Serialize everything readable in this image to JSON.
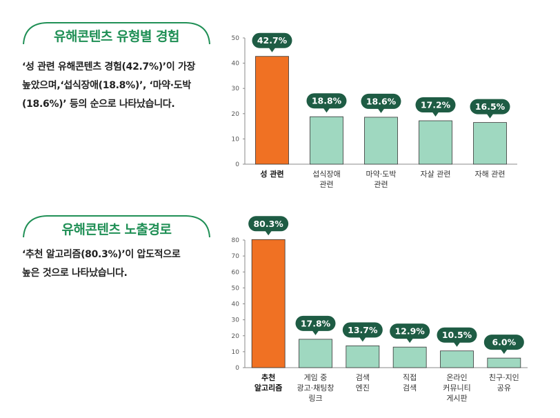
{
  "section1": {
    "title": "유해콘텐츠 유형별 경험",
    "description_lines": [
      "‘성 관련 유해콘텐츠 경험(42.7%)’이 가장",
      "높았으며,‘섭식장애(18.8%)’, ‘마약·도박",
      "(18.6%)’ 등의 순으로 나타났습니다."
    ]
  },
  "section2": {
    "title": "유해콘텐츠 노출경로",
    "description_lines": [
      "‘추천 알고리즘(80.3%)’이 압도적으로",
      "높은 것으로 나타났습니다."
    ]
  },
  "colors": {
    "accent_green": "#1f8f55",
    "pill_dark": "#1e5c44",
    "bar_highlight": "#f07123",
    "bar_normal": "#9fd8c0",
    "bar_stroke": "#333333"
  },
  "chart_data": [
    {
      "type": "bar",
      "title": "유해콘텐츠 유형별 경험",
      "categories": [
        [
          "성 관련"
        ],
        [
          "섭식장애",
          "관련"
        ],
        [
          "마약·도박",
          "관련"
        ],
        [
          "자살 관련"
        ],
        [
          "자해 관련"
        ]
      ],
      "values": [
        42.7,
        18.8,
        18.6,
        17.2,
        16.5
      ],
      "data_labels": [
        "42.7%",
        "18.8%",
        "18.6%",
        "17.2%",
        "16.5%"
      ],
      "highlight_index": 0,
      "yticks": [
        0,
        10,
        20,
        30,
        40,
        50
      ],
      "ylim": [
        0,
        50
      ],
      "xlabel": "",
      "ylabel": ""
    },
    {
      "type": "bar",
      "title": "유해콘텐츠 노출경로",
      "categories": [
        [
          "추천",
          "알고리즘"
        ],
        [
          "게임 중",
          "광고·채팅창",
          "링크"
        ],
        [
          "검색",
          "엔진"
        ],
        [
          "직접",
          "검색"
        ],
        [
          "온라인",
          "커뮤니티",
          "게시판"
        ],
        [
          "친구·지인",
          "공유"
        ]
      ],
      "values": [
        80.3,
        17.8,
        13.7,
        12.9,
        10.5,
        6.0
      ],
      "data_labels": [
        "80.3%",
        "17.8%",
        "13.7%",
        "12.9%",
        "10.5%",
        "6.0%"
      ],
      "highlight_index": 0,
      "yticks": [
        0,
        10,
        20,
        30,
        40,
        50,
        60,
        70,
        80
      ],
      "ylim": [
        0,
        80
      ],
      "xlabel": "",
      "ylabel": ""
    }
  ]
}
